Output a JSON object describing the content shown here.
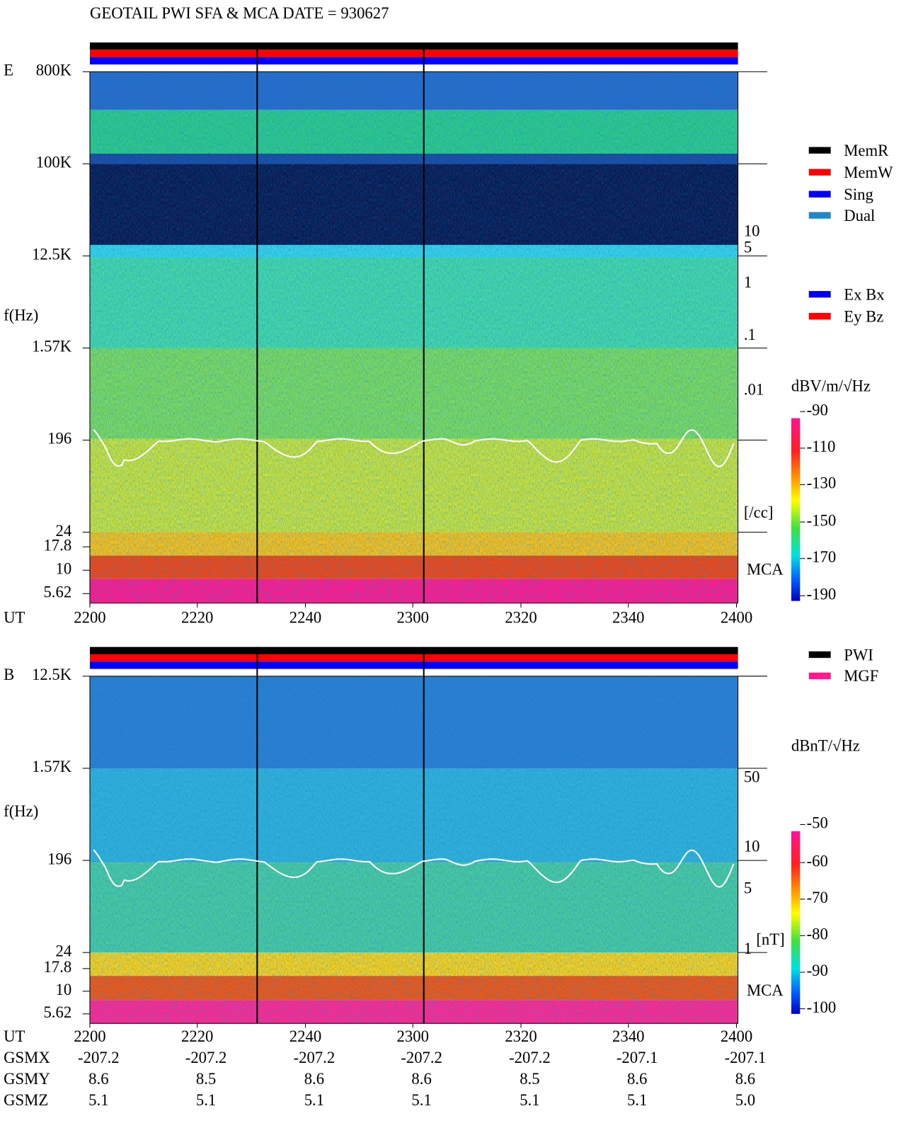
{
  "title": "GEOTAIL  PWI SFA & MCA   DATE = 930627",
  "panels": [
    {
      "label": "E",
      "y_axis_label": "f(Hz)",
      "freq_ticks": [
        "800K",
        "100K",
        "12.5K",
        "1.57K",
        "196",
        "24",
        "17.8",
        "10",
        "5.62"
      ],
      "mca_label": "MCA",
      "time_label": "UT",
      "time_ticks": [
        "2200",
        "2220",
        "2240",
        "2300",
        "2320",
        "2340",
        "2400"
      ],
      "density_ticks": [
        "10",
        "5",
        "1",
        ".1",
        ".01"
      ],
      "density_unit": "[/cc]",
      "colorbar_unit": "dBV/m/√Hz",
      "colorbar_ticks": [
        "-90",
        "-110",
        "-130",
        "-150",
        "-170",
        "-190"
      ],
      "legend": [
        {
          "name": "MemR",
          "color": "#000000"
        },
        {
          "name": "MemW",
          "color": "#ff0000"
        },
        {
          "name": "Sing",
          "color": "#0000ff"
        },
        {
          "name": "Dual",
          "color": "#1e88c8"
        },
        {
          "name": "Ex Bx",
          "color": "#0000ff"
        },
        {
          "name": "Ey Bz",
          "color": "#ff0000"
        }
      ]
    },
    {
      "label": "B",
      "y_axis_label": "f(Hz)",
      "freq_ticks": [
        "12.5K",
        "1.57K",
        "196",
        "24",
        "17.8",
        "10",
        "5.62"
      ],
      "mca_label": "MCA",
      "time_label": "UT",
      "time_ticks": [
        "2200",
        "2220",
        "2240",
        "2300",
        "2320",
        "2340",
        "2400"
      ],
      "density_ticks": [
        "50",
        "10",
        "5",
        "1"
      ],
      "density_unit": "[nT]",
      "colorbar_unit": "dBnT/√Hz",
      "colorbar_ticks": [
        "-50",
        "-60",
        "-70",
        "-80",
        "-90",
        "-100"
      ],
      "legend": [
        {
          "name": "PWI",
          "color": "#000000"
        },
        {
          "name": "MGF",
          "color": "#ff1a8c"
        }
      ]
    }
  ],
  "orbit": [
    {
      "label": "GSMX",
      "values": [
        "-207.2",
        "-207.2",
        "-207.2",
        "-207.2",
        "-207.2",
        "-207.1",
        "-207.1"
      ]
    },
    {
      "label": "GSMY",
      "values": [
        "8.6",
        "8.5",
        "8.6",
        "8.6",
        "8.5",
        "8.6",
        "8.6"
      ]
    },
    {
      "label": "GSMZ",
      "values": [
        "5.1",
        "5.1",
        "5.1",
        "5.1",
        "5.1",
        "5.1",
        "5.0"
      ]
    }
  ]
}
